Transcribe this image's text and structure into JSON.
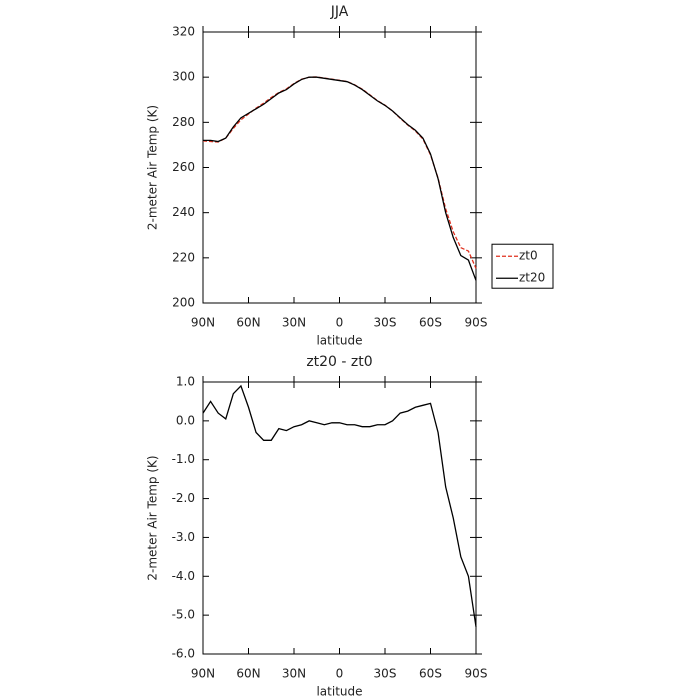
{
  "chart_data": [
    {
      "type": "line",
      "title": "JJA",
      "xlabel": "latitude",
      "ylabel": "2-meter Air Temp (K)",
      "x": [
        90,
        85,
        80,
        75,
        70,
        65,
        60,
        55,
        50,
        45,
        40,
        35,
        30,
        25,
        20,
        15,
        10,
        5,
        0,
        -5,
        -10,
        -15,
        -20,
        -25,
        -30,
        -35,
        -40,
        -45,
        -50,
        -55,
        -60,
        -65,
        -70,
        -75,
        -80,
        -85,
        -90
      ],
      "series": [
        {
          "name": "zt0",
          "color": "#e0301e",
          "dash": true,
          "values": [
            271.8,
            271.5,
            271.3,
            273.0,
            277.3,
            281.1,
            283.7,
            286.3,
            288.5,
            291,
            293.2,
            294.8,
            297.2,
            299.1,
            300,
            300.1,
            299.6,
            299.1,
            298.6,
            298.1,
            296.6,
            294.7,
            292.2,
            289.6,
            287.6,
            285,
            281.8,
            278.8,
            276.2,
            272.6,
            265.6,
            255.3,
            241.7,
            231.5,
            224.5,
            223,
            215.3
          ]
        },
        {
          "name": "zt20",
          "color": "#000000",
          "dash": false,
          "values": [
            272,
            272,
            271.5,
            273,
            278,
            282,
            284,
            286,
            288,
            290.5,
            293,
            294.5,
            297,
            299,
            300,
            300,
            299.5,
            299,
            298.5,
            298,
            296.5,
            294.5,
            292,
            289.5,
            287.5,
            285,
            282,
            279,
            276.5,
            273,
            266,
            255,
            240,
            229,
            221,
            219,
            210
          ]
        }
      ],
      "xlim": [
        90,
        -90
      ],
      "xticks": [
        {
          "value": 90,
          "label": "90N"
        },
        {
          "value": 60,
          "label": "60N"
        },
        {
          "value": 30,
          "label": "30N"
        },
        0,
        {
          "value": -30,
          "label": "30S"
        },
        {
          "value": -60,
          "label": "60S"
        },
        {
          "value": -90,
          "label": "90S"
        }
      ],
      "ylim": [
        200,
        320
      ],
      "yticks": [
        200,
        220,
        240,
        260,
        280,
        300,
        320
      ],
      "legend": "outside right"
    },
    {
      "type": "line",
      "title": "zt20 - zt0",
      "xlabel": "latitude",
      "ylabel": "2-meter Air Temp (K)",
      "x": [
        90,
        85,
        80,
        75,
        70,
        65,
        60,
        55,
        50,
        45,
        40,
        35,
        30,
        25,
        20,
        15,
        10,
        5,
        0,
        -5,
        -10,
        -15,
        -20,
        -25,
        -30,
        -35,
        -40,
        -45,
        -50,
        -55,
        -60,
        -65,
        -70,
        -75,
        -80,
        -85,
        -90
      ],
      "values": [
        0.2,
        0.5,
        0.2,
        0.05,
        0.7,
        0.9,
        0.35,
        -0.3,
        -0.5,
        -0.5,
        -0.2,
        -0.25,
        -0.15,
        -0.1,
        0.0,
        -0.05,
        -0.1,
        -0.05,
        -0.05,
        -0.1,
        -0.1,
        -0.15,
        -0.15,
        -0.1,
        -0.1,
        0.0,
        0.2,
        0.25,
        0.35,
        0.4,
        0.45,
        -0.3,
        -1.7,
        -2.5,
        -3.5,
        -4.0,
        -5.3
      ],
      "color": "#000000",
      "xlim": [
        90,
        -90
      ],
      "xticks": [
        {
          "value": 90,
          "label": "90N"
        },
        {
          "value": 60,
          "label": "60N"
        },
        {
          "value": 30,
          "label": "30N"
        },
        0,
        {
          "value": -30,
          "label": "30S"
        },
        {
          "value": -60,
          "label": "60S"
        },
        {
          "value": -90,
          "label": "90S"
        }
      ],
      "ylim": [
        -6,
        1
      ],
      "yticks": [
        {
          "value": -6,
          "label": "-6.0"
        },
        {
          "value": -5,
          "label": "-5.0"
        },
        {
          "value": -4,
          "label": "-4.0"
        },
        {
          "value": -3,
          "label": "-3.0"
        },
        {
          "value": -2,
          "label": "-2.0"
        },
        {
          "value": -1,
          "label": "-1.0"
        },
        {
          "value": 0,
          "label": "0.0"
        },
        {
          "value": 1,
          "label": "1.0"
        }
      ]
    }
  ]
}
